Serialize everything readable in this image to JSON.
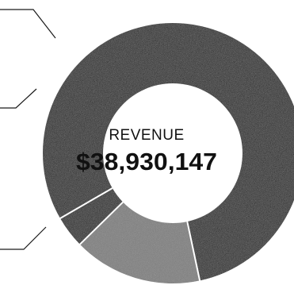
{
  "chart_data": {
    "type": "pie",
    "variant": "donut",
    "center_label": "REVENUE",
    "center_value": "$38,930,147",
    "slices": [
      {
        "value": 0.8,
        "color": "#0d0d0d"
      },
      {
        "value": 0.16,
        "color": "#7a7a7a"
      },
      {
        "value": 0.04,
        "color": "#0d0d0d"
      }
    ],
    "slice_separator_color": "#ffffff",
    "callout_color": "#1a1a1a"
  }
}
